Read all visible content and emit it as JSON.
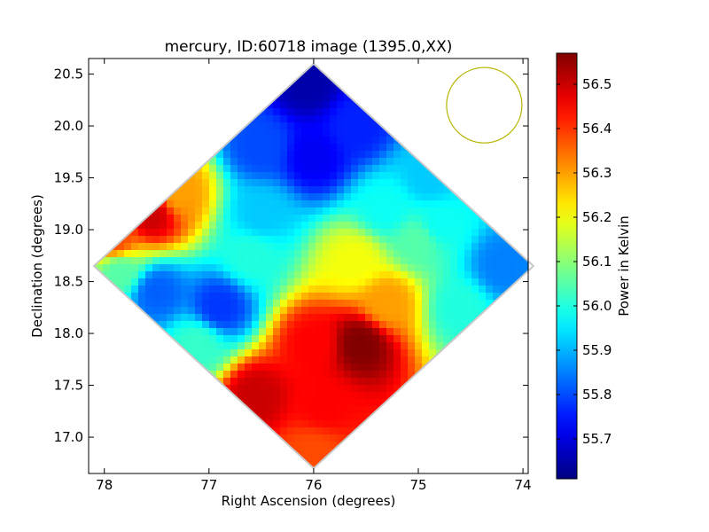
{
  "chart_data": {
    "type": "heatmap",
    "title": "mercury, ID:60718 image (1395.0,XX)",
    "xlabel": "Right Ascension (degrees)",
    "ylabel": "Declination (degrees)",
    "xlim": [
      78.15,
      73.95
    ],
    "ylim": [
      16.65,
      20.65
    ],
    "x_ticks": [
      78,
      77,
      76,
      75,
      74
    ],
    "x_tick_labels": [
      "78",
      "77",
      "76",
      "75",
      "74"
    ],
    "y_ticks": [
      17.0,
      17.5,
      18.0,
      18.5,
      19.0,
      19.5,
      20.0,
      20.5
    ],
    "y_tick_labels": [
      "17.0",
      "17.5",
      "18.0",
      "18.5",
      "19.0",
      "19.5",
      "20.0",
      "20.5"
    ],
    "colormap": "jet",
    "colorbar": {
      "label": "Power in Kelvin",
      "min": 55.61,
      "max": 56.57,
      "ticks": [
        55.7,
        55.8,
        55.9,
        56.0,
        56.1,
        56.2,
        56.3,
        56.4,
        56.5
      ],
      "tick_labels": [
        "55.7",
        "55.8",
        "55.9",
        "56.0",
        "56.1",
        "56.2",
        "56.3",
        "56.4",
        "56.5"
      ]
    },
    "map_footprint": {
      "shape": "diamond",
      "center": [
        76.0,
        18.65
      ],
      "ra_half_width": 2.1,
      "dec_half_height": 1.95
    },
    "features": [
      {
        "ra": 76.0,
        "dec": 19.7,
        "value": 55.72
      },
      {
        "ra": 76.05,
        "dec": 20.4,
        "value": 55.65
      },
      {
        "ra": 75.6,
        "dec": 20.0,
        "value": 55.76
      },
      {
        "ra": 76.5,
        "dec": 19.8,
        "value": 55.8
      },
      {
        "ra": 77.55,
        "dec": 19.15,
        "value": 56.5
      },
      {
        "ra": 77.3,
        "dec": 19.35,
        "value": 56.3
      },
      {
        "ra": 77.9,
        "dec": 18.9,
        "value": 56.38
      },
      {
        "ra": 77.85,
        "dec": 18.6,
        "value": 56.05
      },
      {
        "ra": 77.5,
        "dec": 18.4,
        "value": 55.82
      },
      {
        "ra": 76.9,
        "dec": 18.25,
        "value": 55.78
      },
      {
        "ra": 76.6,
        "dec": 18.75,
        "value": 56.0
      },
      {
        "ra": 77.1,
        "dec": 17.9,
        "value": 56.02
      },
      {
        "ra": 75.55,
        "dec": 17.9,
        "value": 56.57
      },
      {
        "ra": 76.55,
        "dec": 17.4,
        "value": 56.5
      },
      {
        "ra": 75.9,
        "dec": 17.3,
        "value": 56.45
      },
      {
        "ra": 76.0,
        "dec": 16.85,
        "value": 56.38
      },
      {
        "ra": 76.0,
        "dec": 17.9,
        "value": 56.45
      },
      {
        "ra": 75.3,
        "dec": 18.3,
        "value": 56.3
      },
      {
        "ra": 75.6,
        "dec": 18.7,
        "value": 56.2
      },
      {
        "ra": 75.0,
        "dec": 18.9,
        "value": 56.05
      },
      {
        "ra": 74.8,
        "dec": 19.05,
        "value": 55.98
      },
      {
        "ra": 74.2,
        "dec": 18.65,
        "value": 55.85
      },
      {
        "ra": 74.6,
        "dec": 18.25,
        "value": 56.0
      },
      {
        "ra": 74.9,
        "dec": 19.5,
        "value": 55.92
      },
      {
        "ra": 75.3,
        "dec": 19.2,
        "value": 55.98
      },
      {
        "ra": 76.5,
        "dec": 19.15,
        "value": 55.92
      }
    ],
    "beam_circle": {
      "ra": 74.37,
      "dec": 20.2,
      "radius_deg": 0.36,
      "color": "#b5b500"
    },
    "grid": false
  }
}
